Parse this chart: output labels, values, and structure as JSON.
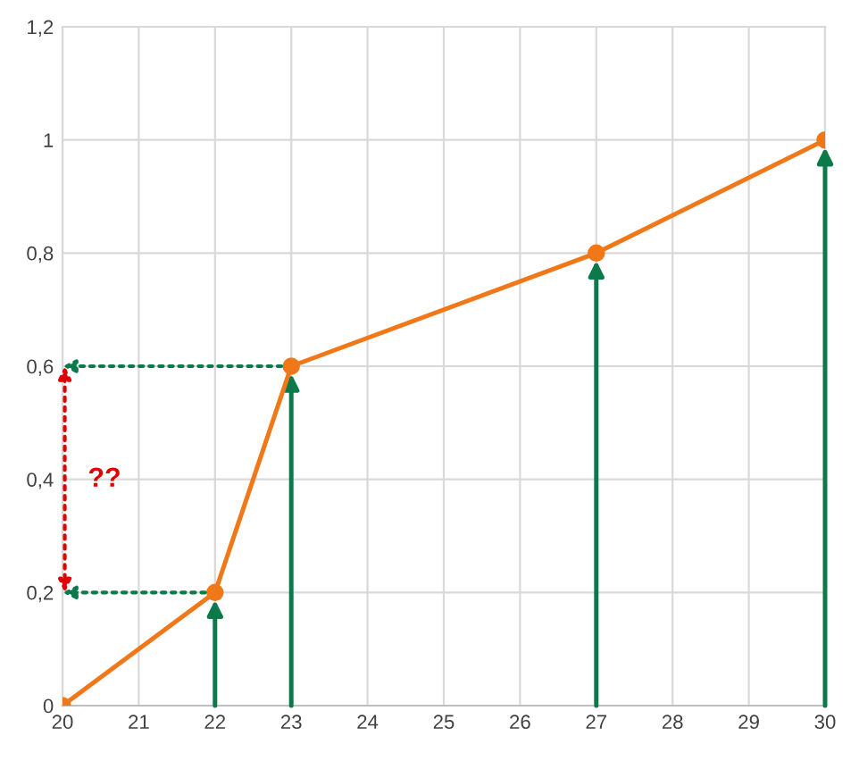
{
  "chart_data": {
    "type": "line",
    "x": [
      20,
      22,
      23,
      27,
      30
    ],
    "series": [
      {
        "color": "#f07818",
        "values": [
          0,
          0.2,
          0.6,
          0.8,
          1
        ]
      }
    ],
    "marker": "circle",
    "xlim": [
      20,
      30
    ],
    "xticks": [
      20,
      21,
      22,
      23,
      24,
      25,
      26,
      27,
      28,
      29,
      30
    ],
    "ylim": [
      0,
      1.2
    ],
    "yticks": [
      0,
      {
        "value": 0.2,
        "label": "0,2"
      },
      {
        "value": 0.4,
        "label": "0,4"
      },
      {
        "value": 0.6,
        "label": "0,6"
      },
      {
        "value": 0.8,
        "label": "0,8"
      },
      1,
      {
        "value": 1.2,
        "label": "1,2"
      }
    ],
    "grid": true,
    "annotations": [
      "??"
    ]
  }
}
